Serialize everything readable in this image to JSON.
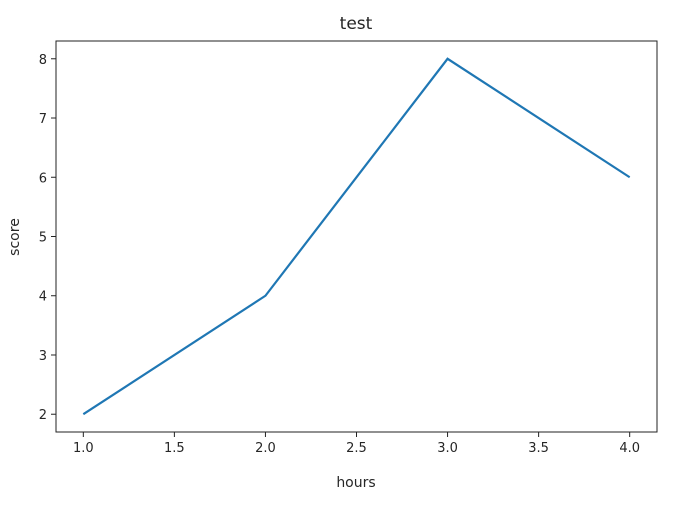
{
  "chart_data": {
    "type": "line",
    "title": "test",
    "xlabel": "hours",
    "ylabel": "score",
    "x": [
      1,
      2,
      3,
      4
    ],
    "series": [
      {
        "values": [
          2,
          4,
          8,
          6
        ],
        "color": "#1f77b4"
      }
    ],
    "xlim": [
      0.85,
      4.15
    ],
    "ylim": [
      1.7,
      8.3
    ],
    "xticks": [
      "1.0",
      "1.5",
      "2.0",
      "2.5",
      "3.0",
      "3.5",
      "4.0"
    ],
    "yticks": [
      "2",
      "3",
      "4",
      "5",
      "6",
      "7",
      "8"
    ],
    "grid": false
  }
}
